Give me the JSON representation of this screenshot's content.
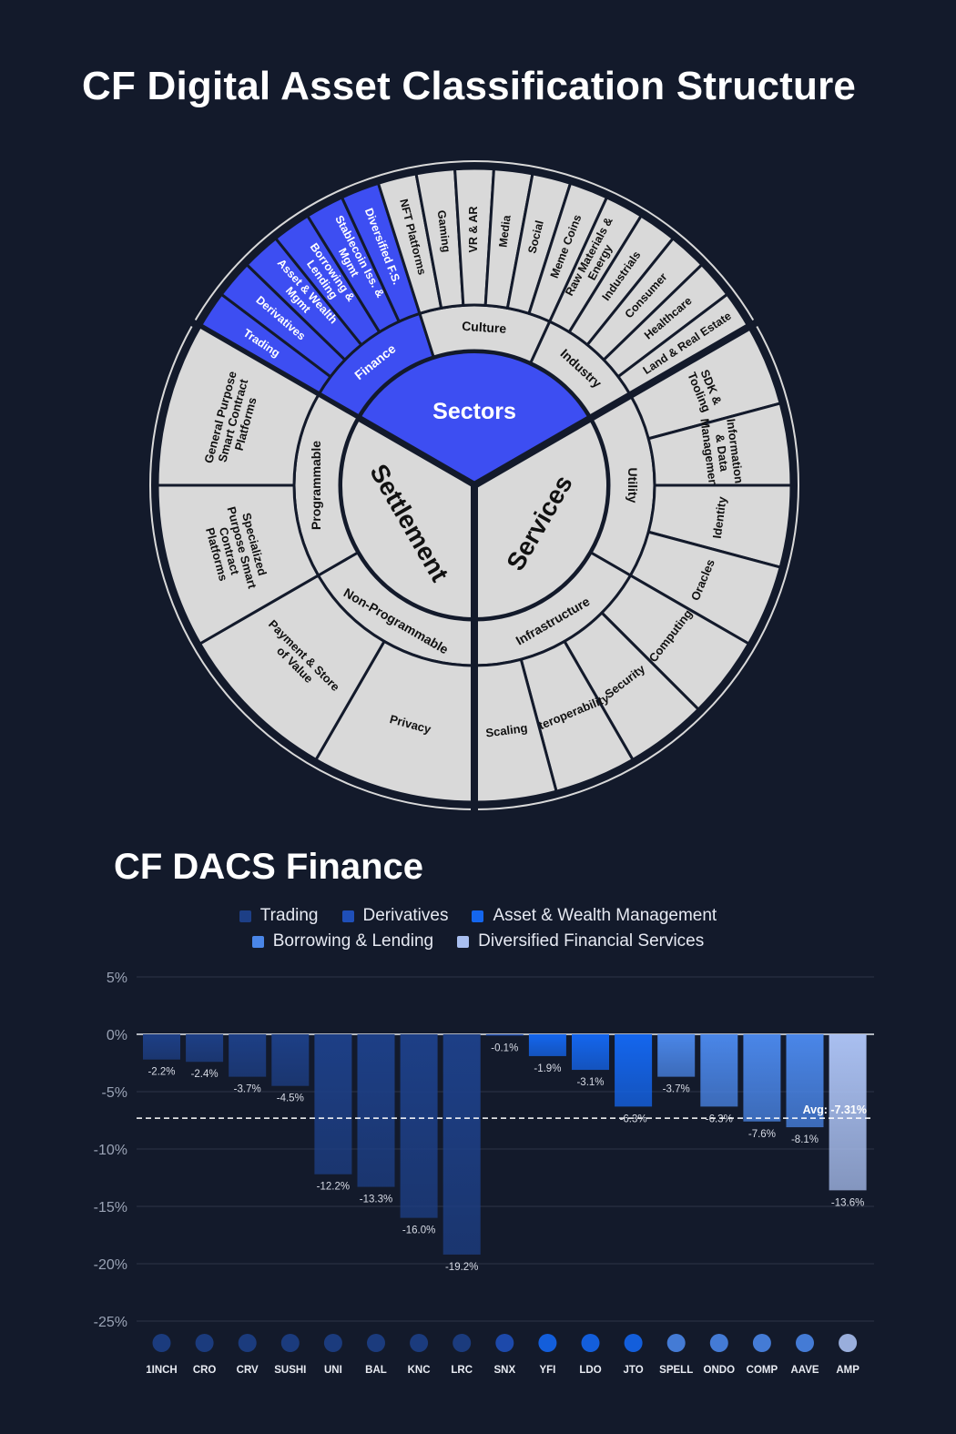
{
  "titles": {
    "top": "CF Digital Asset Classification Structure",
    "bottom": "CF DACS Finance"
  },
  "colors": {
    "background": "#131a2b",
    "wheel_fill": "#d9d9d9",
    "highlight": "#3d4ef2",
    "trading": "#1d3f86",
    "derivatives": "#1f4fb8",
    "asset_wealth": "#1466ee",
    "borrowing": "#4a86e8",
    "diversified": "#a9bff0"
  },
  "wheel": {
    "center": {
      "sectors": "Sectors",
      "settlement": "Settlement",
      "services": "Services"
    },
    "groups": {
      "sectors": [
        {
          "label": "Finance",
          "items": [
            "Trading",
            "Derivatives",
            "Asset & Wealth Mgmt",
            "Borrowing & Lending",
            "Stablecoin Iss. & Mgmt",
            "Diversified F.S."
          ]
        },
        {
          "label": "Culture",
          "items": [
            "NFT Platforms",
            "Gaming",
            "VR & AR",
            "Media",
            "Social",
            "Meme Coins"
          ]
        },
        {
          "label": "Industry",
          "items": [
            "Raw Materials & Energy",
            "Industrials",
            "Consumer",
            "Healthcare",
            "Land & Real Estate"
          ]
        }
      ],
      "services": [
        {
          "label": "Utility",
          "items": [
            "SDK & Tooling",
            "Information & Data Management",
            "Identity",
            "Oracles"
          ]
        },
        {
          "label": "Infrastructure",
          "items": [
            "Computing",
            "Security",
            "Interoperability",
            "Scaling"
          ]
        }
      ],
      "settlement": [
        {
          "label": "Non-Programmable",
          "items": [
            "Privacy",
            "Payment & Store of Value"
          ]
        },
        {
          "label": "Programmable",
          "items": [
            "Specialized Purpose Smart Contract Platforms",
            "General Purpose Smart Contract Platforms"
          ]
        }
      ]
    }
  },
  "legend": [
    {
      "label": "Trading",
      "color": "#1d3f86"
    },
    {
      "label": "Derivatives",
      "color": "#1f4fb8"
    },
    {
      "label": "Asset & Wealth Management",
      "color": "#1466ee"
    },
    {
      "label": "Borrowing & Lending",
      "color": "#4a86e8"
    },
    {
      "label": "Diversified Financial Services",
      "color": "#a9bff0"
    }
  ],
  "chart_data": {
    "type": "bar",
    "title": "CF DACS Finance",
    "categories": [
      "1INCH",
      "CRO",
      "CRV",
      "SUSHI",
      "UNI",
      "BAL",
      "KNC",
      "LRC",
      "SNX",
      "YFI",
      "LDO",
      "JTO",
      "SPELL",
      "ONDO",
      "COMP",
      "AAVE",
      "AMP"
    ],
    "values": [
      -2.2,
      -2.4,
      -3.7,
      -4.5,
      -12.2,
      -13.3,
      -16.0,
      -19.2,
      -0.1,
      -1.9,
      -3.1,
      -6.3,
      -3.7,
      -6.3,
      -7.6,
      -8.1,
      -13.6
    ],
    "labels": [
      "-2.2%",
      "-2.4%",
      "-3.7%",
      "-4.5%",
      "-12.2%",
      "-13.3%",
      "-16.0%",
      "-19.2%",
      "-0.1%",
      "-1.9%",
      "-3.1%",
      "-6.3%",
      "-3.7%",
      "-6.3%",
      "-7.6%",
      "-8.1%",
      "-13.6%"
    ],
    "groups": [
      "Trading",
      "Trading",
      "Trading",
      "Trading",
      "Trading",
      "Trading",
      "Trading",
      "Trading",
      "Derivatives",
      "Asset & Wealth Management",
      "Asset & Wealth Management",
      "Asset & Wealth Management",
      "Borrowing & Lending",
      "Borrowing & Lending",
      "Borrowing & Lending",
      "Borrowing & Lending",
      "Diversified Financial Services"
    ],
    "ylim": [
      -25,
      5
    ],
    "yticks": [
      5,
      0,
      -5,
      -10,
      -15,
      -20,
      -25
    ],
    "ytick_labels": [
      "5%",
      "0%",
      "-5%",
      "-10%",
      "-15%",
      "-20%",
      "-25%"
    ],
    "average": -7.31,
    "average_label": "Avg: -7.31%",
    "grid": true
  }
}
